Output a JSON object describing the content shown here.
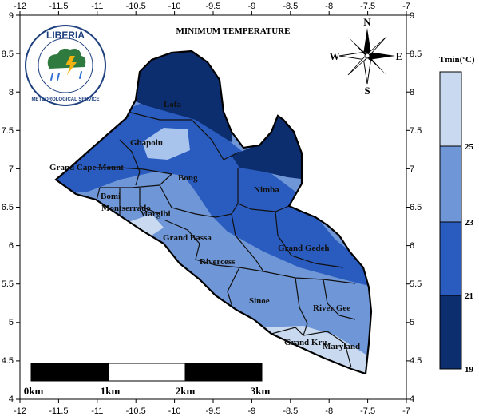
{
  "map": {
    "title": "MINIMUM TEMPERATURE",
    "x_ticks": [
      "-12",
      "-11.5",
      "-11",
      "-10.5",
      "-10",
      "-9.5",
      "-9",
      "-8.5",
      "-8",
      "-7.5",
      "-7"
    ],
    "y_ticks": [
      "9",
      "8.5",
      "8",
      "7.5",
      "7",
      "6.5",
      "6",
      "5.5",
      "5",
      "4.5",
      "4"
    ],
    "counties": [
      "Lofa",
      "Gbapolu",
      "Grand Cape Mount",
      "Bong",
      "Nimba",
      "Bomi",
      "Montserrado",
      "Margibi",
      "Grand Bassa",
      "Grand Gedeh",
      "Rivercess",
      "Sinoe",
      "River Gee",
      "Grand Kru",
      "Maryland"
    ],
    "compass": {
      "n": "N",
      "s": "S",
      "e": "E",
      "w": "W"
    },
    "scale_bar": {
      "labels": [
        "0km",
        "1km",
        "2km",
        "3km"
      ]
    },
    "logo": {
      "line1": "LIBERIA",
      "line2": "METEOROLOGICAL SERVICE"
    }
  },
  "legend": {
    "title": "Tmin(ºC)",
    "ticks": [
      "25",
      "23",
      "21",
      "19"
    ],
    "colors": [
      "#c9daf0",
      "#6f96d6",
      "#2a5bbf",
      "#0c2d6e"
    ]
  }
}
